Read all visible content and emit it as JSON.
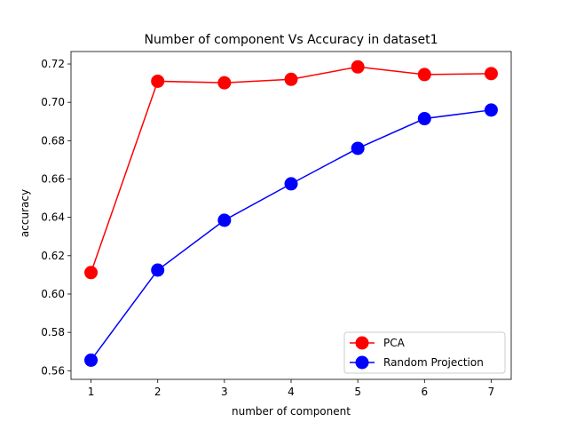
{
  "chart_data": {
    "type": "line",
    "title": "Number of component Vs Accuracy in dataset1",
    "xlabel": "number of component",
    "ylabel": "accuracy",
    "x": [
      1,
      2,
      3,
      4,
      5,
      6,
      7
    ],
    "xticks": [
      1,
      2,
      3,
      4,
      5,
      6,
      7
    ],
    "yticks": [
      0.56,
      0.58,
      0.6,
      0.62,
      0.64,
      0.66,
      0.68,
      0.7,
      0.72
    ],
    "ytick_labels": [
      "0.56",
      "0.58",
      "0.60",
      "0.62",
      "0.64",
      "0.66",
      "0.68",
      "0.70",
      "0.72"
    ],
    "xlim": [
      0.7,
      7.3
    ],
    "ylim": [
      0.5555,
      0.7265
    ],
    "grid": false,
    "legend_position": "bottom-right",
    "series": [
      {
        "name": "PCA",
        "color": "#ff0000",
        "marker": "circle",
        "values": [
          0.6112,
          0.711,
          0.7102,
          0.712,
          0.7185,
          0.7145,
          0.715
        ]
      },
      {
        "name": "Random Projection",
        "color": "#0000ff",
        "marker": "circle",
        "values": [
          0.5655,
          0.6125,
          0.6385,
          0.6575,
          0.676,
          0.6915,
          0.696
        ]
      }
    ]
  }
}
